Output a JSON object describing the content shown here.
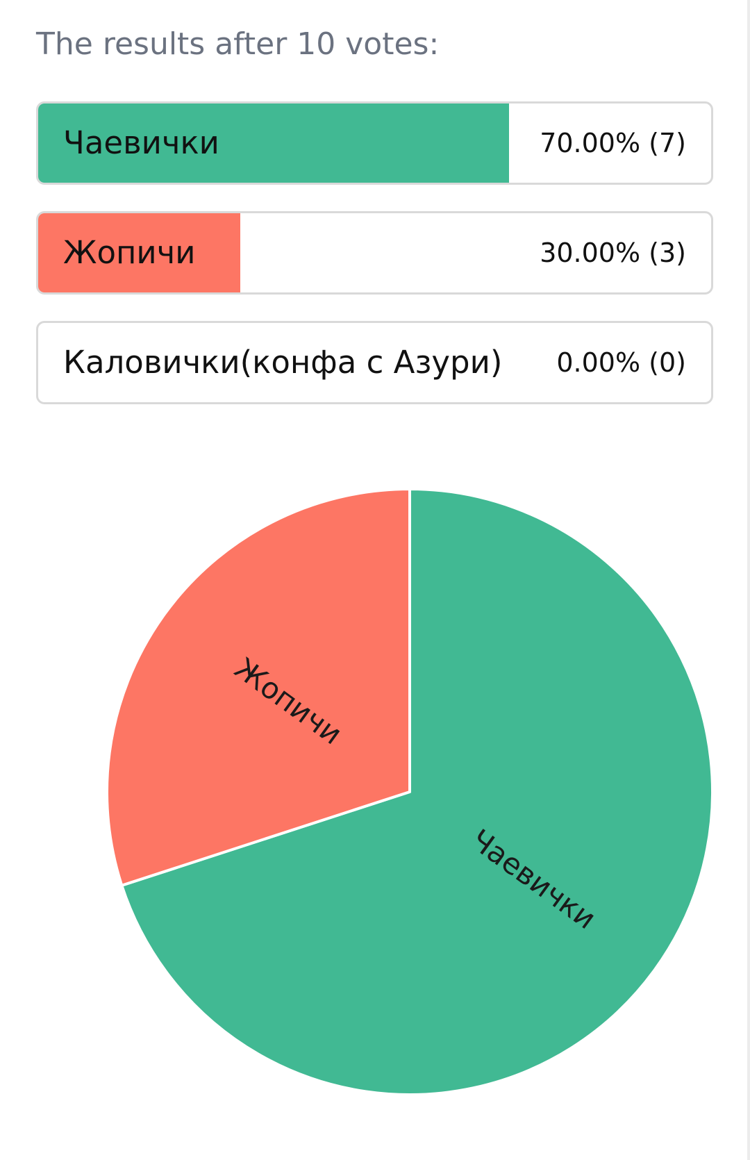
{
  "heading": "The results after 10 votes:",
  "options": [
    {
      "label": "Чаевички",
      "result": "70.00% (7)",
      "percent": 70,
      "votes": 7,
      "color": "#41b993"
    },
    {
      "label": "Жопичи",
      "result": "30.00% (3)",
      "percent": 30,
      "votes": 3,
      "color": "#fd7664"
    },
    {
      "label": "Каловички(конфа с Азури)",
      "result": "0.00% (0)",
      "percent": 0,
      "votes": 0,
      "color": "#cccccc"
    }
  ],
  "chart_data": {
    "type": "pie",
    "total_votes": 10,
    "slices": [
      {
        "label": "Чаевички",
        "value": 7,
        "color": "#41b993"
      },
      {
        "label": "Жопичи",
        "value": 3,
        "color": "#fd7664"
      },
      {
        "label": "Каловички(конфа с Азури)",
        "value": 0,
        "color": "#cccccc"
      }
    ]
  }
}
